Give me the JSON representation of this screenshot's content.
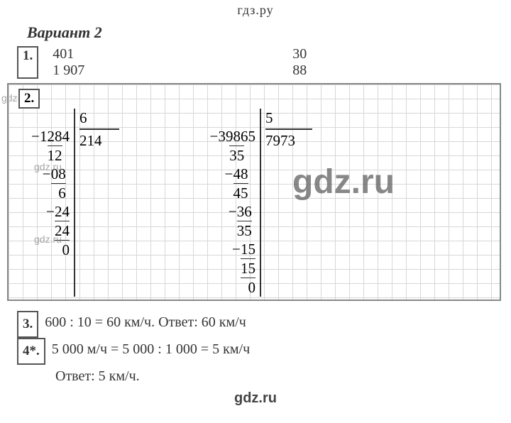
{
  "header": "гдз.ру",
  "variant": "Вариант 2",
  "p1": {
    "label": "1.",
    "a1": "401",
    "b1": "30",
    "a2": "1 907",
    "b2": "88"
  },
  "p2": {
    "label": "2.",
    "div1": {
      "dividend": "1284",
      "divisor": "6",
      "quotient": "214",
      "s1": "12",
      "s1r": "  ",
      "r1": "08",
      "s2": "6",
      "r2": "24",
      "s3": "24",
      "r3": "0"
    },
    "div2": {
      "dividend": "39865",
      "divisor": "5",
      "quotient": "7973",
      "s1": "35",
      "s1sp": "   ",
      "r1": "48",
      "s2": "45",
      "r2": "36",
      "s3": "35",
      "r3": "15",
      "s4": "15",
      "r4": "0"
    }
  },
  "p3": {
    "label": "3.",
    "line": "600 : 10 = 60 км/ч.  Ответ: 60 км/ч"
  },
  "p4": {
    "label": "4*.",
    "line1": "5 000 м/ч = 5 000 : 1 000 = 5 км/ч",
    "line2": "Ответ: 5 км/ч."
  },
  "wm": {
    "small": "gdz.ru",
    "big": "gdz.ru",
    "footer": "gdz.ru"
  }
}
